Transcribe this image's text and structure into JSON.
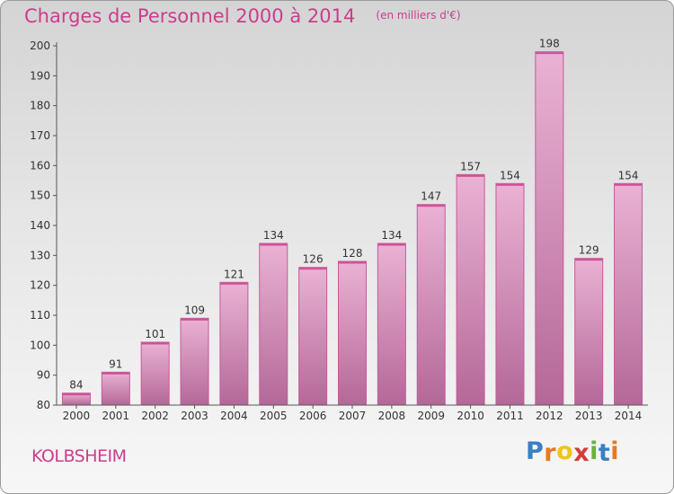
{
  "title": "Charges de Personnel 2000 à 2014",
  "subtitle": "(en milliers d'€)",
  "commune": "KOLBSHEIM",
  "logo": {
    "letters": [
      "P",
      "r",
      "o",
      "x",
      "i",
      "t",
      "i"
    ],
    "colors": [
      "#3a7fc4",
      "#e87a1e",
      "#f0c419",
      "#d63a3a",
      "#6ab23e",
      "#3a7fc4",
      "#e87a1e"
    ]
  },
  "colors": {
    "bar_top": "#eab2d4",
    "bar_bottom": "#b46898",
    "bar_edge": "#c8589a",
    "accent": "#cc3d8c",
    "axis_text": "#333333"
  },
  "chart_data": {
    "type": "bar",
    "categories": [
      "2000",
      "2001",
      "2002",
      "2003",
      "2004",
      "2005",
      "2006",
      "2007",
      "2008",
      "2009",
      "2010",
      "2011",
      "2012",
      "2013",
      "2014"
    ],
    "values": [
      84,
      91,
      101,
      109,
      121,
      134,
      126,
      128,
      134,
      147,
      157,
      154,
      198,
      129,
      154
    ],
    "ylim": [
      80,
      200
    ],
    "yticks": [
      80,
      90,
      100,
      110,
      120,
      130,
      140,
      150,
      160,
      170,
      180,
      190,
      200
    ],
    "grid": false,
    "title": "Charges de Personnel 2000 à 2014"
  }
}
